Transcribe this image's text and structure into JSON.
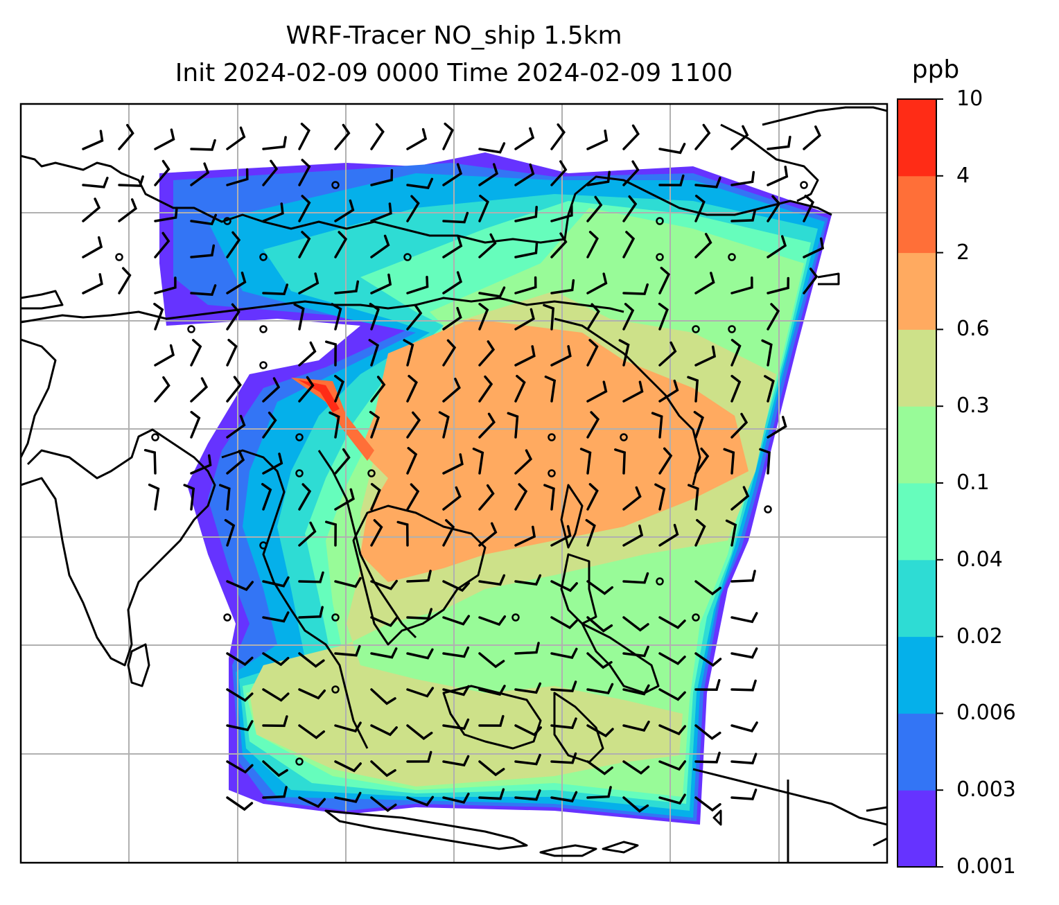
{
  "title": {
    "line1": "WRF-Tracer NO_ship 1.5km",
    "line2": "Init 2024-02-09 0000 Time 2024-02-09 1100"
  },
  "colorbar": {
    "unit": "ppb",
    "levels": [
      "0.001",
      "0.003",
      "0.006",
      "0.02",
      "0.04",
      "0.1",
      "0.3",
      "0.6",
      "2",
      "4",
      "10"
    ],
    "colors": [
      "#6633ff",
      "#3375f5",
      "#05b0ea",
      "#2edcd4",
      "#66fdbc",
      "#98fb98",
      "#cde189",
      "#ffaa60",
      "#ff6f38",
      "#ff2c16"
    ]
  },
  "map": {
    "gridlines": true,
    "coastline_color": "#000000",
    "grid_color": "#b0b0b0",
    "field": "NO_ship tracer concentration",
    "overlay": "wind barbs"
  }
}
